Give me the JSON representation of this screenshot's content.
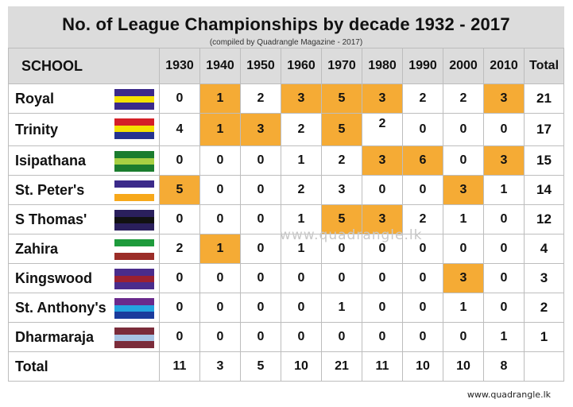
{
  "title": "No. of League Championships by decade 1932 - 2017",
  "subtitle": "(compiled by Quadrangle Magazine - 2017)",
  "watermark": "www.quadrangle.lk",
  "footer": "www.quadrangle.lk",
  "highlight_color": "#f5ab35",
  "header": {
    "school": "SCHOOL",
    "decades": [
      "1930",
      "1940",
      "1950",
      "1960",
      "1970",
      "1980",
      "1990",
      "2000",
      "2010"
    ],
    "total": "Total"
  },
  "total_label": "Total",
  "chart_data": {
    "type": "table",
    "columns": [
      "1930",
      "1940",
      "1950",
      "1960",
      "1970",
      "1980",
      "1990",
      "2000",
      "2010",
      "Total"
    ],
    "rows": [
      {
        "school": "Royal",
        "values": [
          0,
          1,
          2,
          3,
          5,
          3,
          2,
          2,
          3
        ],
        "total": 21,
        "highlight": [
          1,
          3,
          4,
          5,
          8
        ],
        "flag": [
          "#3b2a8a",
          "#f4e200",
          "#3b2a8a"
        ]
      },
      {
        "school": "Trinity",
        "values": [
          4,
          1,
          3,
          2,
          5,
          2,
          0,
          0,
          0
        ],
        "total": 17,
        "highlight": [
          1,
          2,
          4
        ],
        "flag": [
          "#d42027",
          "#f4e200",
          "#25338f"
        ]
      },
      {
        "school": "Isipathana",
        "values": [
          0,
          0,
          0,
          1,
          2,
          3,
          6,
          0,
          3
        ],
        "total": 15,
        "highlight": [
          5,
          6,
          8
        ],
        "flag": [
          "#1a7c2e",
          "#a7d043",
          "#1a7c2e"
        ]
      },
      {
        "school": "St. Peter's",
        "values": [
          5,
          0,
          0,
          2,
          3,
          0,
          0,
          3,
          1
        ],
        "total": 14,
        "highlight": [
          0,
          7
        ],
        "flag": [
          "#3b2a8a",
          "#ffffff",
          "#f7a81b"
        ]
      },
      {
        "school": "S Thomas'",
        "values": [
          0,
          0,
          0,
          1,
          5,
          3,
          2,
          1,
          0
        ],
        "total": 12,
        "highlight": [
          4,
          5
        ],
        "flag": [
          "#2a1f5c",
          "#111111",
          "#2a1f5c"
        ]
      },
      {
        "school": "Zahira",
        "values": [
          2,
          1,
          0,
          1,
          0,
          0,
          0,
          0,
          0
        ],
        "total": 4,
        "highlight": [
          1
        ],
        "flag": [
          "#1e9b3c",
          "#ffffff",
          "#9b2d28"
        ]
      },
      {
        "school": "Kingswood",
        "values": [
          0,
          0,
          0,
          0,
          0,
          0,
          0,
          3,
          0
        ],
        "total": 3,
        "highlight": [
          7
        ],
        "flag": [
          "#4a2c8c",
          "#9b2030",
          "#4a2c8c"
        ]
      },
      {
        "school": "St. Anthony's",
        "values": [
          0,
          0,
          0,
          0,
          1,
          0,
          0,
          1,
          0
        ],
        "total": 2,
        "highlight": [],
        "flag": [
          "#6a2a8c",
          "#24a3e0",
          "#1a3b9c"
        ]
      },
      {
        "school": "Dharmaraja",
        "values": [
          0,
          0,
          0,
          0,
          0,
          0,
          0,
          0,
          1
        ],
        "total": 1,
        "highlight": [],
        "flag": [
          "#7b2c3a",
          "#a7c4e4",
          "#7b2c3a"
        ]
      }
    ],
    "column_totals": [
      11,
      3,
      5,
      10,
      21,
      11,
      10,
      10,
      8
    ]
  }
}
